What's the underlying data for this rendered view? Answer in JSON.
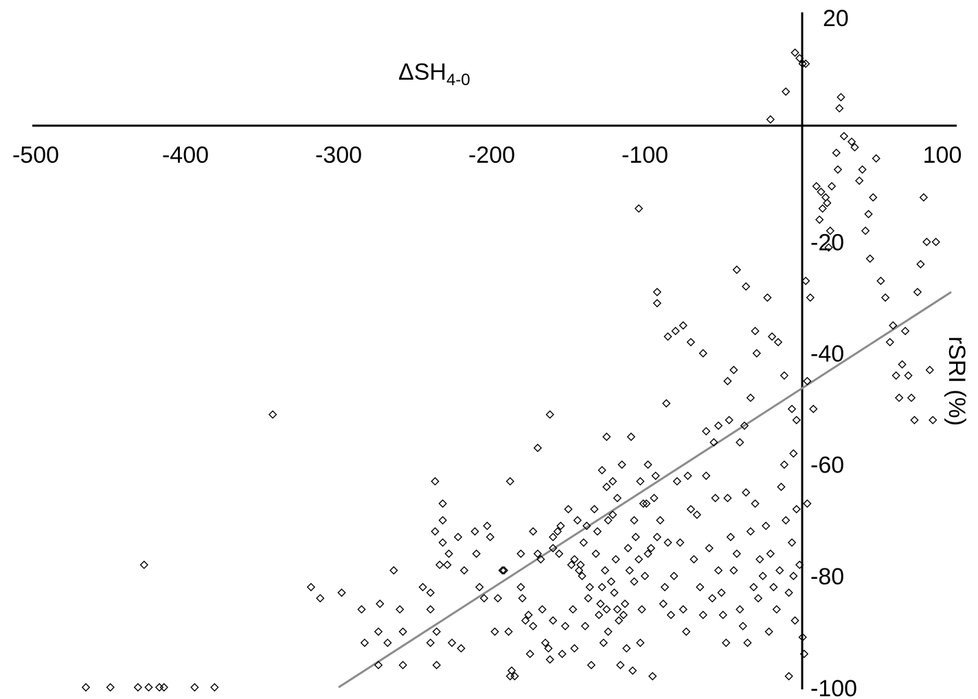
{
  "chart_data": {
    "type": "scatter",
    "x_title": "ΔSH",
    "x_title_sub": "4-0",
    "ylabel": "rSRI (%)",
    "xlim": [
      -500,
      100
    ],
    "ylim": [
      -100,
      20
    ],
    "x_ticks": [
      "-500",
      "-400",
      "-300",
      "-200",
      "-100",
      "100"
    ],
    "y_ticks": [
      "20",
      "-20",
      "-40",
      "-60",
      "-80",
      "-100"
    ],
    "x_tick_values": [
      -500,
      -400,
      -300,
      -200,
      -100,
      100
    ],
    "y_tick_values": [
      20,
      -20,
      -40,
      -60,
      -80,
      -100
    ],
    "trendline": {
      "x1": -300,
      "y1": -100,
      "x2": 100,
      "y2": -29
    },
    "points": [
      [
        -465,
        -100
      ],
      [
        -449,
        -100
      ],
      [
        -431,
        -100
      ],
      [
        -424,
        -100
      ],
      [
        -417,
        -100
      ],
      [
        -414,
        -100
      ],
      [
        -394,
        -100
      ],
      [
        -381,
        -100
      ],
      [
        -427,
        -78
      ],
      [
        -343,
        -51
      ],
      [
        -237,
        -63
      ],
      [
        -188,
        -63
      ],
      [
        -162,
        -51
      ],
      [
        -170,
        -57
      ],
      [
        -104,
        -14
      ],
      [
        -92,
        -29
      ],
      [
        -318,
        -82
      ],
      [
        -312,
        -84
      ],
      [
        -298,
        -83
      ],
      [
        -285,
        -86
      ],
      [
        -283,
        -92
      ],
      [
        -274,
        -96
      ],
      [
        -273,
        -85
      ],
      [
        -274,
        -90
      ],
      [
        -268,
        -92
      ],
      [
        -264,
        -79
      ],
      [
        -260,
        -86
      ],
      [
        -258,
        -96
      ],
      [
        -258,
        -90
      ],
      [
        -245,
        -82
      ],
      [
        -240,
        -86
      ],
      [
        -240,
        -83
      ],
      [
        -240,
        -92
      ],
      [
        -237,
        -72
      ],
      [
        -236,
        -90
      ],
      [
        -236,
        -96
      ],
      [
        -234,
        -78
      ],
      [
        -232,
        -74
      ],
      [
        -232,
        -67
      ],
      [
        -232,
        -70
      ],
      [
        -229,
        -78
      ],
      [
        -228,
        -76
      ],
      [
        -226,
        -92
      ],
      [
        -222,
        -73
      ],
      [
        -220,
        -93
      ],
      [
        -218,
        -79
      ],
      [
        -210,
        -76
      ],
      [
        -211,
        -72
      ],
      [
        -208,
        -82
      ],
      [
        -205,
        -84
      ],
      [
        -203,
        -71
      ],
      [
        -201,
        -73
      ],
      [
        -198,
        -90
      ],
      [
        -196,
        -84
      ],
      [
        -193,
        -79
      ],
      [
        -192,
        -79
      ],
      [
        -189,
        -90
      ],
      [
        -188,
        -98
      ],
      [
        -187,
        -97
      ],
      [
        -185,
        -98
      ],
      [
        -181,
        -76
      ],
      [
        -181,
        -82
      ],
      [
        -180,
        -84
      ],
      [
        -178,
        -88
      ],
      [
        -176,
        -87
      ],
      [
        -175,
        -94
      ],
      [
        -173,
        -72
      ],
      [
        -173,
        -89
      ],
      [
        -170,
        -76
      ],
      [
        -168,
        -77
      ],
      [
        -167,
        -86
      ],
      [
        -165,
        -92
      ],
      [
        -163,
        -93
      ],
      [
        -162,
        -95
      ],
      [
        -160,
        -75
      ],
      [
        -160,
        -88
      ],
      [
        -157,
        -72
      ],
      [
        -156,
        -76
      ],
      [
        -154,
        -94
      ],
      [
        -152,
        -89
      ],
      [
        -150,
        -68
      ],
      [
        -148,
        -78
      ],
      [
        -147,
        -86
      ],
      [
        -146,
        -77
      ],
      [
        -146,
        -93
      ],
      [
        -143,
        -79
      ],
      [
        -142,
        -78
      ],
      [
        -141,
        -80
      ],
      [
        -140,
        -74
      ],
      [
        -139,
        -89
      ],
      [
        -137,
        -84
      ],
      [
        -136,
        -82
      ],
      [
        -135,
        -96
      ],
      [
        -133,
        -68
      ],
      [
        -132,
        -76
      ],
      [
        -131,
        -72
      ],
      [
        -130,
        -87
      ],
      [
        -129,
        -85
      ],
      [
        -128,
        -82
      ],
      [
        -127,
        -92
      ],
      [
        -126,
        -79
      ],
      [
        -125,
        -86
      ],
      [
        -124,
        -90
      ],
      [
        -122,
        -81
      ],
      [
        -121,
        -69
      ],
      [
        -120,
        -83
      ],
      [
        -119,
        -77
      ],
      [
        -118,
        -86
      ],
      [
        -117,
        -88
      ],
      [
        -116,
        -96
      ],
      [
        -114,
        -87
      ],
      [
        -113,
        -85
      ],
      [
        -112,
        -93
      ],
      [
        -110,
        -79
      ],
      [
        -108,
        -97
      ],
      [
        -107,
        -81
      ],
      [
        -106,
        -73
      ],
      [
        -104,
        -77
      ],
      [
        -103,
        -92
      ],
      [
        -102,
        -86
      ],
      [
        -101,
        -67
      ],
      [
        -100,
        -80
      ],
      [
        -98,
        -76
      ],
      [
        -96,
        -75
      ],
      [
        -95,
        -98
      ],
      [
        -93,
        -62
      ],
      [
        -92,
        -73
      ],
      [
        -90,
        -70
      ],
      [
        -88,
        -85
      ],
      [
        -87,
        -82
      ],
      [
        -85,
        -74
      ],
      [
        -83,
        -87
      ],
      [
        -81,
        -80
      ],
      [
        -79,
        -63
      ],
      [
        -77,
        -74
      ],
      [
        -75,
        -86
      ],
      [
        -73,
        -90
      ],
      [
        -72,
        -62
      ],
      [
        -70,
        -68
      ],
      [
        -68,
        -77
      ],
      [
        -66,
        -69
      ],
      [
        -64,
        -82
      ],
      [
        -62,
        -87
      ],
      [
        -60,
        -62
      ],
      [
        -58,
        -75
      ],
      [
        -56,
        -84
      ],
      [
        -54,
        -66
      ],
      [
        -52,
        -79
      ],
      [
        -50,
        -83
      ],
      [
        -49,
        -87
      ],
      [
        -47,
        -92
      ],
      [
        -46,
        -66
      ],
      [
        -44,
        -73
      ],
      [
        -42,
        -79
      ],
      [
        -40,
        -76
      ],
      [
        -38,
        -86
      ],
      [
        -36,
        -89
      ],
      [
        -34,
        -65
      ],
      [
        -33,
        -92
      ],
      [
        -31,
        -72
      ],
      [
        -29,
        -82
      ],
      [
        -28,
        -67
      ],
      [
        -26,
        -84
      ],
      [
        -25,
        -77
      ],
      [
        -23,
        -80
      ],
      [
        -21,
        -71
      ],
      [
        -19,
        -90
      ],
      [
        -18,
        -76
      ],
      [
        -16,
        -82
      ],
      [
        -14,
        -86
      ],
      [
        -12,
        -79
      ],
      [
        -11,
        -64
      ],
      [
        -9,
        -60
      ],
      [
        -8,
        -70
      ],
      [
        -6,
        -83
      ],
      [
        -4,
        -74
      ],
      [
        -6,
        -98
      ],
      [
        -3,
        -80
      ],
      [
        -2,
        -88
      ],
      [
        -1,
        -68
      ],
      [
        1,
        -78
      ],
      [
        3,
        -91
      ],
      [
        4,
        -94
      ],
      [
        6,
        -67
      ],
      [
        -28,
        -36
      ],
      [
        -27,
        -40
      ],
      [
        -31,
        -48
      ],
      [
        -35,
        -53
      ],
      [
        -38,
        -56
      ],
      [
        -45,
        -52
      ],
      [
        -52,
        -53
      ],
      [
        -60,
        -54
      ],
      [
        -42,
        -43
      ],
      [
        -46,
        -45
      ],
      [
        -55,
        -56
      ],
      [
        -62,
        -40
      ],
      [
        -70,
        -38
      ],
      [
        -75,
        -35
      ],
      [
        -80,
        -36
      ],
      [
        -85,
        -37
      ],
      [
        -86,
        -49
      ],
      [
        -92,
        -31
      ],
      [
        -40,
        -25
      ],
      [
        -34,
        -28
      ],
      [
        -20,
        -30
      ],
      [
        -17,
        -37
      ],
      [
        -13,
        -38
      ],
      [
        -9,
        -44
      ],
      [
        -4,
        -50
      ],
      [
        -3,
        -58
      ],
      [
        -1,
        -52
      ],
      [
        5,
        -27
      ],
      [
        6,
        -45
      ],
      [
        8,
        -30
      ],
      [
        10,
        -50
      ],
      [
        12,
        -10
      ],
      [
        14,
        -16
      ],
      [
        15,
        -11
      ],
      [
        16,
        -14
      ],
      [
        18,
        -12
      ],
      [
        19,
        -13
      ],
      [
        20,
        -21
      ],
      [
        21,
        -18
      ],
      [
        22,
        -10
      ],
      [
        25,
        -4
      ],
      [
        26,
        -7
      ],
      [
        27,
        4
      ],
      [
        28,
        6
      ],
      [
        30,
        -1
      ],
      [
        35,
        -2
      ],
      [
        37,
        -3
      ],
      [
        40,
        -9
      ],
      [
        42,
        -7
      ],
      [
        44,
        -18
      ],
      [
        46,
        -15
      ],
      [
        47,
        -23
      ],
      [
        49,
        -12
      ],
      [
        51,
        -5
      ],
      [
        54,
        -27
      ],
      [
        57,
        -30
      ],
      [
        60,
        -38
      ],
      [
        62,
        -35
      ],
      [
        64,
        -44
      ],
      [
        66,
        -48
      ],
      [
        68,
        -42
      ],
      [
        70,
        -36
      ],
      [
        72,
        -44
      ],
      [
        74,
        -48
      ],
      [
        76,
        -52
      ],
      [
        78,
        -29
      ],
      [
        80,
        -24
      ],
      [
        82,
        -12
      ],
      [
        84,
        -20
      ],
      [
        86,
        -43
      ],
      [
        88,
        -52
      ],
      [
        90,
        -20
      ],
      [
        -125,
        -55
      ],
      [
        -121,
        -63
      ],
      [
        -115,
        -60
      ],
      [
        -109,
        -55
      ],
      [
        -103,
        -63
      ],
      [
        -98,
        -60
      ],
      [
        -124,
        -70
      ],
      [
        -118,
        -66
      ],
      [
        -111,
        -75
      ],
      [
        -107,
        -70
      ],
      [
        -99,
        -67
      ],
      [
        -94,
        -66
      ],
      [
        -144,
        -70
      ],
      [
        -138,
        -71
      ],
      [
        -155,
        -71
      ],
      [
        -160,
        -73
      ],
      [
        -128,
        -61
      ],
      [
        -125,
        -64
      ],
      [
        -18,
        2
      ],
      [
        -2,
        14
      ],
      [
        1,
        13
      ],
      [
        3,
        12
      ],
      [
        5,
        12
      ],
      [
        -8,
        7
      ]
    ]
  }
}
